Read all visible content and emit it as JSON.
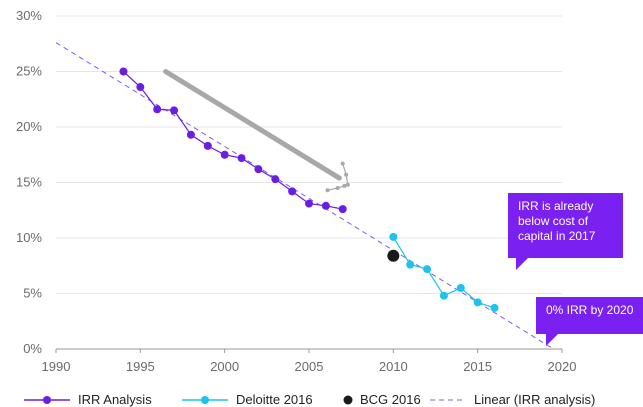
{
  "chart_data": {
    "type": "line",
    "title": "",
    "xlabel": "",
    "ylabel": "",
    "xlim": [
      1990,
      2020
    ],
    "ylim": [
      0,
      30
    ],
    "x_ticks": [
      "1990",
      "1995",
      "2000",
      "2005",
      "2010",
      "2015",
      "2020"
    ],
    "y_ticks": [
      "0%",
      "5%",
      "10%",
      "15%",
      "20%",
      "25%",
      "30%"
    ],
    "grid": "horizontal",
    "legend_position": "bottom",
    "colors": {
      "irr": "#6a1fe0",
      "deloitte": "#1cc4ec",
      "bcg": "#1a1a1a",
      "trend": "#7b5cf0",
      "grey": "#a8a8a8",
      "callout": "#7a20f0"
    },
    "series": [
      {
        "name": "IRR Analysis",
        "x": [
          1994,
          1995,
          1996,
          1997,
          1998,
          1999,
          2000,
          2001,
          2002,
          2003,
          2004,
          2005,
          2006,
          2007
        ],
        "values": [
          25.0,
          23.6,
          21.6,
          21.5,
          19.3,
          18.3,
          17.5,
          17.2,
          16.2,
          15.3,
          14.2,
          13.1,
          12.9,
          12.6
        ]
      },
      {
        "name": "Deloitte 2016",
        "x": [
          2010,
          2011,
          2012,
          2013,
          2014,
          2015,
          2016
        ],
        "values": [
          10.1,
          7.6,
          7.2,
          4.8,
          5.5,
          4.2,
          3.7
        ]
      },
      {
        "name": "BCG 2016",
        "x": [
          2010
        ],
        "values": [
          8.4
        ]
      },
      {
        "name": "Linear (IRR analysis)",
        "x": [
          1990,
          2019.5
        ],
        "values": [
          27.6,
          0
        ]
      }
    ],
    "grey_trend": {
      "x": [
        1996.5,
        2006.8
      ],
      "values": [
        25.0,
        15.4
      ]
    },
    "grey_cluster": {
      "x": [
        2006.1,
        2006.7,
        2007.1,
        2007.3,
        2007.2,
        2007.0
      ],
      "values": [
        14.3,
        14.5,
        14.7,
        14.8,
        15.7,
        16.7
      ]
    },
    "annotations": [
      {
        "lines": [
          "IRR is already",
          "below cost of",
          "capital in 2017"
        ]
      },
      {
        "lines": [
          "0% IRR by 2020"
        ]
      }
    ]
  }
}
